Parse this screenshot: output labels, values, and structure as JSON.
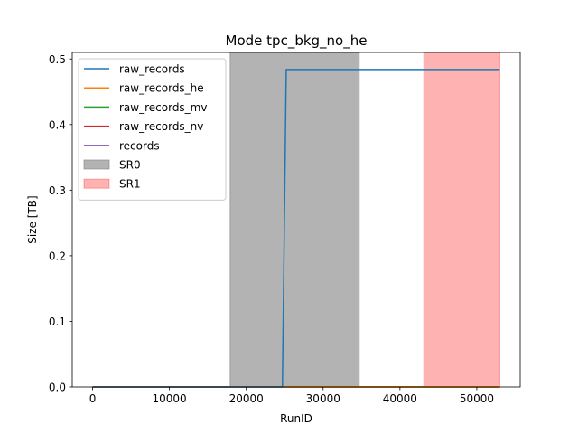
{
  "chart_data": {
    "type": "line",
    "title": "Mode tpc_bkg_no_he",
    "xlabel": "RunID",
    "ylabel": "Size [TB]",
    "xlim": [
      -2650,
      55650
    ],
    "ylim": [
      0,
      0.51
    ],
    "xticks": [
      0,
      10000,
      20000,
      30000,
      40000,
      50000
    ],
    "yticks": [
      0.0,
      0.1,
      0.2,
      0.3,
      0.4,
      0.5
    ],
    "xtick_labels": [
      "0",
      "10000",
      "20000",
      "30000",
      "40000",
      "50000"
    ],
    "ytick_labels": [
      "0.0",
      "0.1",
      "0.2",
      "0.3",
      "0.4",
      "0.5"
    ],
    "grid": false,
    "legend_position": "upper-left",
    "series": [
      {
        "name": "raw_records",
        "color": "#1f77b4",
        "x": [
          0,
          24700,
          25200,
          53000
        ],
        "y": [
          0,
          0,
          0.484,
          0.484
        ]
      },
      {
        "name": "raw_records_he",
        "color": "#ff7f0e",
        "x": [
          0,
          53000
        ],
        "y": [
          0,
          0
        ]
      },
      {
        "name": "raw_records_mv",
        "color": "#2ca02c",
        "x": [
          0,
          53000
        ],
        "y": [
          0,
          0
        ]
      },
      {
        "name": "raw_records_nv",
        "color": "#d62728",
        "x": [
          0,
          53000
        ],
        "y": [
          0,
          0
        ]
      },
      {
        "name": "records",
        "color": "#9467bd",
        "x": [
          0,
          53000
        ],
        "y": [
          0,
          0
        ]
      }
    ],
    "spans": [
      {
        "name": "SR0",
        "x0": 17900,
        "x1": 34700,
        "color": "#808080",
        "alpha": 0.6
      },
      {
        "name": "SR1",
        "x0": 43100,
        "x1": 53000,
        "color": "#ff0000",
        "alpha": 0.3
      }
    ]
  }
}
